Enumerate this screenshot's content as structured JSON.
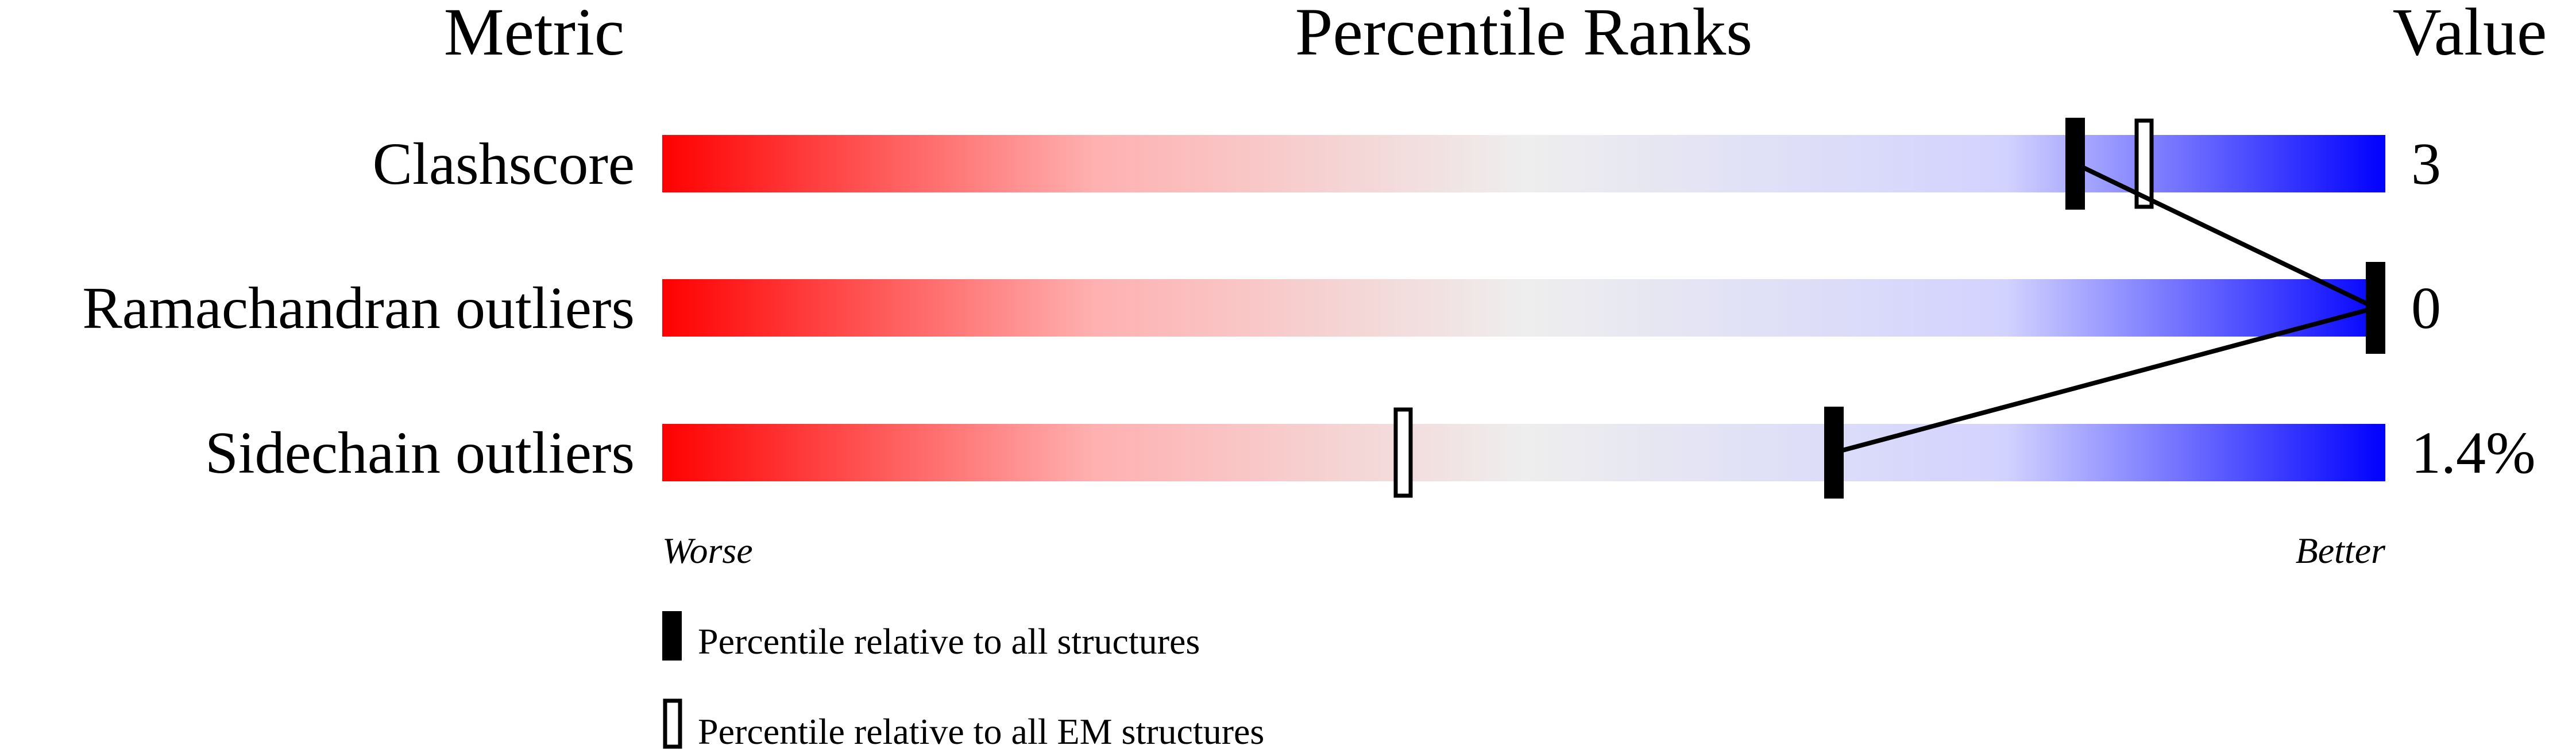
{
  "chart_data": {
    "type": "percentile-ranks",
    "headers": {
      "metric": "Metric",
      "title": "Percentile Ranks",
      "value": "Value"
    },
    "axis": {
      "min": 0,
      "max": 100,
      "left_label": "Worse",
      "right_label": "Better"
    },
    "gradient_colors": [
      "#ff0000",
      "#eeeeee",
      "#0000ff"
    ],
    "rows": [
      {
        "metric": "Clashscore",
        "value": "3",
        "percentile_all": 82,
        "percentile_em": 86
      },
      {
        "metric": "Ramachandran outliers",
        "value": "0",
        "percentile_all": 100,
        "percentile_em": 100
      },
      {
        "metric": "Sidechain outliers",
        "value": "1.4%",
        "percentile_all": 68,
        "percentile_em": 43
      }
    ],
    "legend": [
      {
        "marker": "filled",
        "label": "Percentile relative to all structures"
      },
      {
        "marker": "hollow",
        "label": "Percentile relative to all EM structures"
      }
    ]
  }
}
